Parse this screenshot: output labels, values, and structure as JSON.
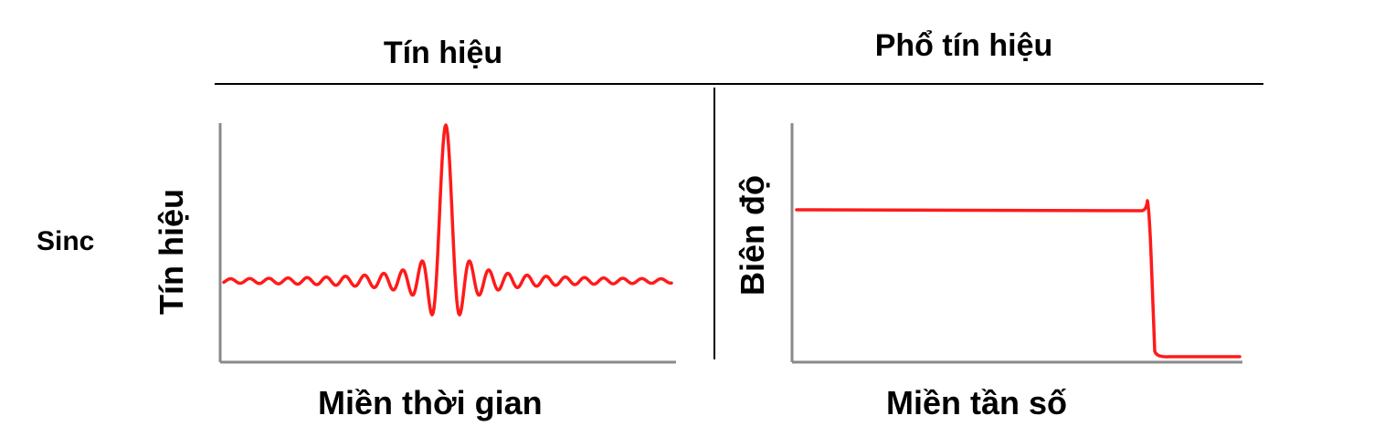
{
  "headers": {
    "signal": "Tín hiệu",
    "spectrum": "Phổ tín hiệu"
  },
  "row_label": "Sinc",
  "time_panel": {
    "ylabel": "Tín hiệu",
    "xlabel": "Miền thời gian"
  },
  "freq_panel": {
    "ylabel": "Biên độ",
    "xlabel": "Miền tần số"
  },
  "colors": {
    "trace": "#ff1a1a",
    "axis": "#8a8a8a",
    "rule": "#000000"
  }
}
